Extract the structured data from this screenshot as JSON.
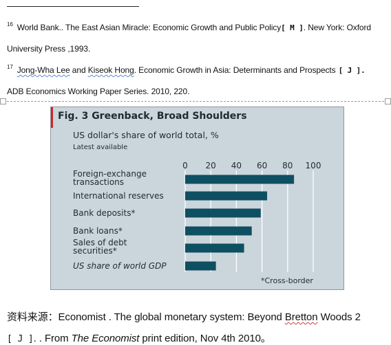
{
  "footnotes": [
    {
      "num": "16",
      "line1_main": "World Bank.. The East Asian Miracle: Economic Growth and Public Policy",
      "line1_bracket": "[ M ]",
      "line1_tail": ". New York: Oxford",
      "line2": "University Press ,1993."
    },
    {
      "num": "17",
      "author1": "Jong-Wha Lee",
      "and": " and ",
      "author2": "Kiseok Hong",
      "line1_main": ". Economic Growth in Asia: Determinants and Prospects",
      "line1_bracket": "[ J ].",
      "line2": "ADB Economics Working Paper Series. 2010, 220."
    }
  ],
  "chart_data": {
    "type": "bar",
    "orientation": "horizontal",
    "title": "Fig. 3 Greenback, Broad Shoulders",
    "subtitle": "US dollar's share of world total, %",
    "note": "Latest available",
    "categories": [
      "Foreign-exchange transactions",
      "International reserves",
      "Bank deposits*",
      "Bank loans*",
      "Sales of debt securities*",
      "US share of world GDP"
    ],
    "category_lines": [
      [
        "Foreign-exchange",
        "transactions"
      ],
      [
        "International reserves"
      ],
      [
        "Bank deposits*"
      ],
      [
        "Bank loans*"
      ],
      [
        "Sales of debt",
        "securities*"
      ],
      [
        "US share of world GDP"
      ]
    ],
    "values": [
      85,
      64,
      59,
      52,
      46,
      24
    ],
    "xlim": [
      0,
      100
    ],
    "xticks": [
      "0",
      "20",
      "40",
      "60",
      "80",
      "100"
    ],
    "footnote": "*Cross-border",
    "bar_color": "#0f4f62",
    "grid": true,
    "accent": "#d2232a"
  },
  "source": {
    "prefix": "资料来源：",
    "text1": "Economist . The global monetary system: Beyond ",
    "bretton": "Bretton",
    "text2": " Woods 2",
    "line2_bracket": "[ J ]",
    "line2_mid": ". . From ",
    "publication": "The Economist",
    "line2_tail": " print edition, Nov 4th 2010。"
  }
}
